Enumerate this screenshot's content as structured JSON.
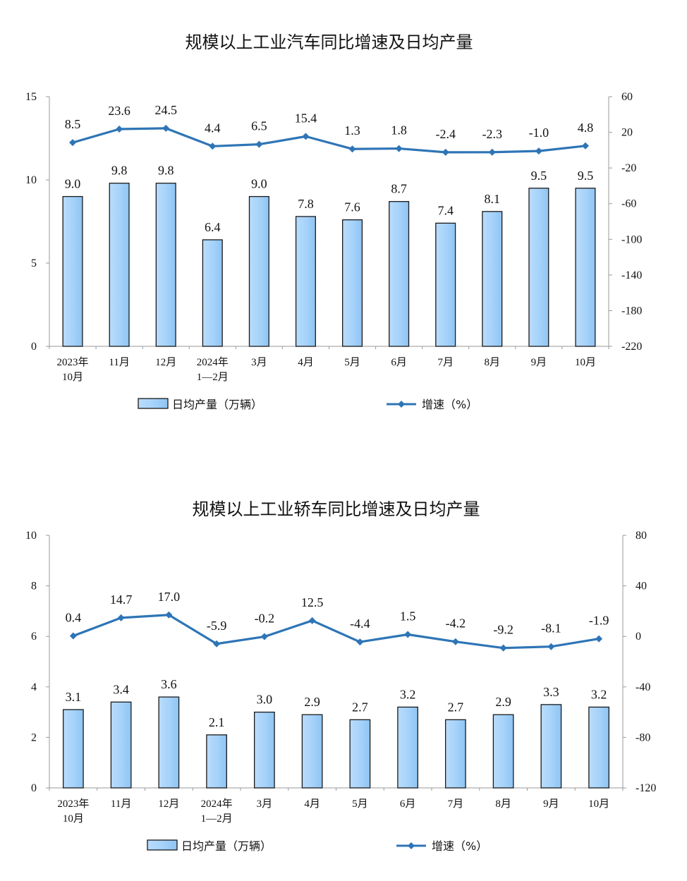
{
  "chart_data": [
    {
      "type": "bar+line",
      "title": "规模以上工业汽车同比增速及日均产量",
      "categories": [
        [
          "2023年",
          "10月"
        ],
        [
          "11月"
        ],
        [
          "12月"
        ],
        [
          "2024年",
          "1—2月"
        ],
        [
          "3月"
        ],
        [
          "4月"
        ],
        [
          "5月"
        ],
        [
          "6月"
        ],
        [
          "7月"
        ],
        [
          "8月"
        ],
        [
          "9月"
        ],
        [
          "10月"
        ]
      ],
      "bar_series": {
        "name": "日均产量（万辆）",
        "values": [
          9.0,
          9.8,
          9.8,
          6.4,
          9.0,
          7.8,
          7.6,
          8.7,
          7.4,
          8.1,
          9.5,
          9.5
        ],
        "labels": [
          "9.0",
          "9.8",
          "9.8",
          "6.4",
          "9.0",
          "7.8",
          "7.6",
          "8.7",
          "7.4",
          "8.1",
          "9.5",
          "9.5"
        ]
      },
      "line_series": {
        "name": "增速（%）",
        "values": [
          8.5,
          23.6,
          24.5,
          4.4,
          6.5,
          15.4,
          1.3,
          1.8,
          -2.4,
          -2.3,
          -1.0,
          4.8
        ],
        "labels": [
          "8.5",
          "23.6",
          "24.5",
          "4.4",
          "6.5",
          "15.4",
          "1.3",
          "1.8",
          "-2.4",
          "-2.3",
          "-1.0",
          "4.8"
        ]
      },
      "ylim_left": [
        0,
        15
      ],
      "yticks_left": [
        0,
        5,
        10,
        15
      ],
      "ylim_right": [
        -220,
        60
      ],
      "yticks_right": [
        60,
        20,
        -20,
        -60,
        -100,
        -140,
        -180,
        -220
      ],
      "legend_position": "bottom"
    },
    {
      "type": "bar+line",
      "title": "规模以上工业轿车同比增速及日均产量",
      "categories": [
        [
          "2023年",
          "10月"
        ],
        [
          "11月"
        ],
        [
          "12月"
        ],
        [
          "2024年",
          "1—2月"
        ],
        [
          "3月"
        ],
        [
          "4月"
        ],
        [
          "5月"
        ],
        [
          "6月"
        ],
        [
          "7月"
        ],
        [
          "8月"
        ],
        [
          "9月"
        ],
        [
          "10月"
        ]
      ],
      "bar_series": {
        "name": "日均产量（万辆）",
        "values": [
          3.1,
          3.4,
          3.6,
          2.1,
          3.0,
          2.9,
          2.7,
          3.2,
          2.7,
          2.9,
          3.3,
          3.2
        ],
        "labels": [
          "3.1",
          "3.4",
          "3.6",
          "2.1",
          "3.0",
          "2.9",
          "2.7",
          "3.2",
          "2.7",
          "2.9",
          "3.3",
          "3.2"
        ]
      },
      "line_series": {
        "name": "增速（%）",
        "values": [
          0.4,
          14.7,
          17.0,
          -5.9,
          -0.2,
          12.5,
          -4.4,
          1.5,
          -4.2,
          -9.2,
          -8.1,
          -1.9
        ],
        "labels": [
          "0.4",
          "14.7",
          "17.0",
          "-5.9",
          "-0.2",
          "12.5",
          "-4.4",
          "1.5",
          "-4.2",
          "-9.2",
          "-8.1",
          "-1.9"
        ]
      },
      "ylim_left": [
        0,
        10
      ],
      "yticks_left": [
        0,
        2,
        4,
        6,
        8,
        10
      ],
      "ylim_right": [
        -120,
        80
      ],
      "yticks_right": [
        80,
        40,
        0,
        -40,
        -80,
        -120
      ],
      "legend_position": "bottom"
    }
  ],
  "colors": {
    "bar_fill_top": "#c3e2ff",
    "bar_fill": "#9dcdf7",
    "bar_stroke": "#1a1a1a",
    "line": "#2e75b6",
    "axis": "#9a9a9a",
    "text": "#111111"
  }
}
